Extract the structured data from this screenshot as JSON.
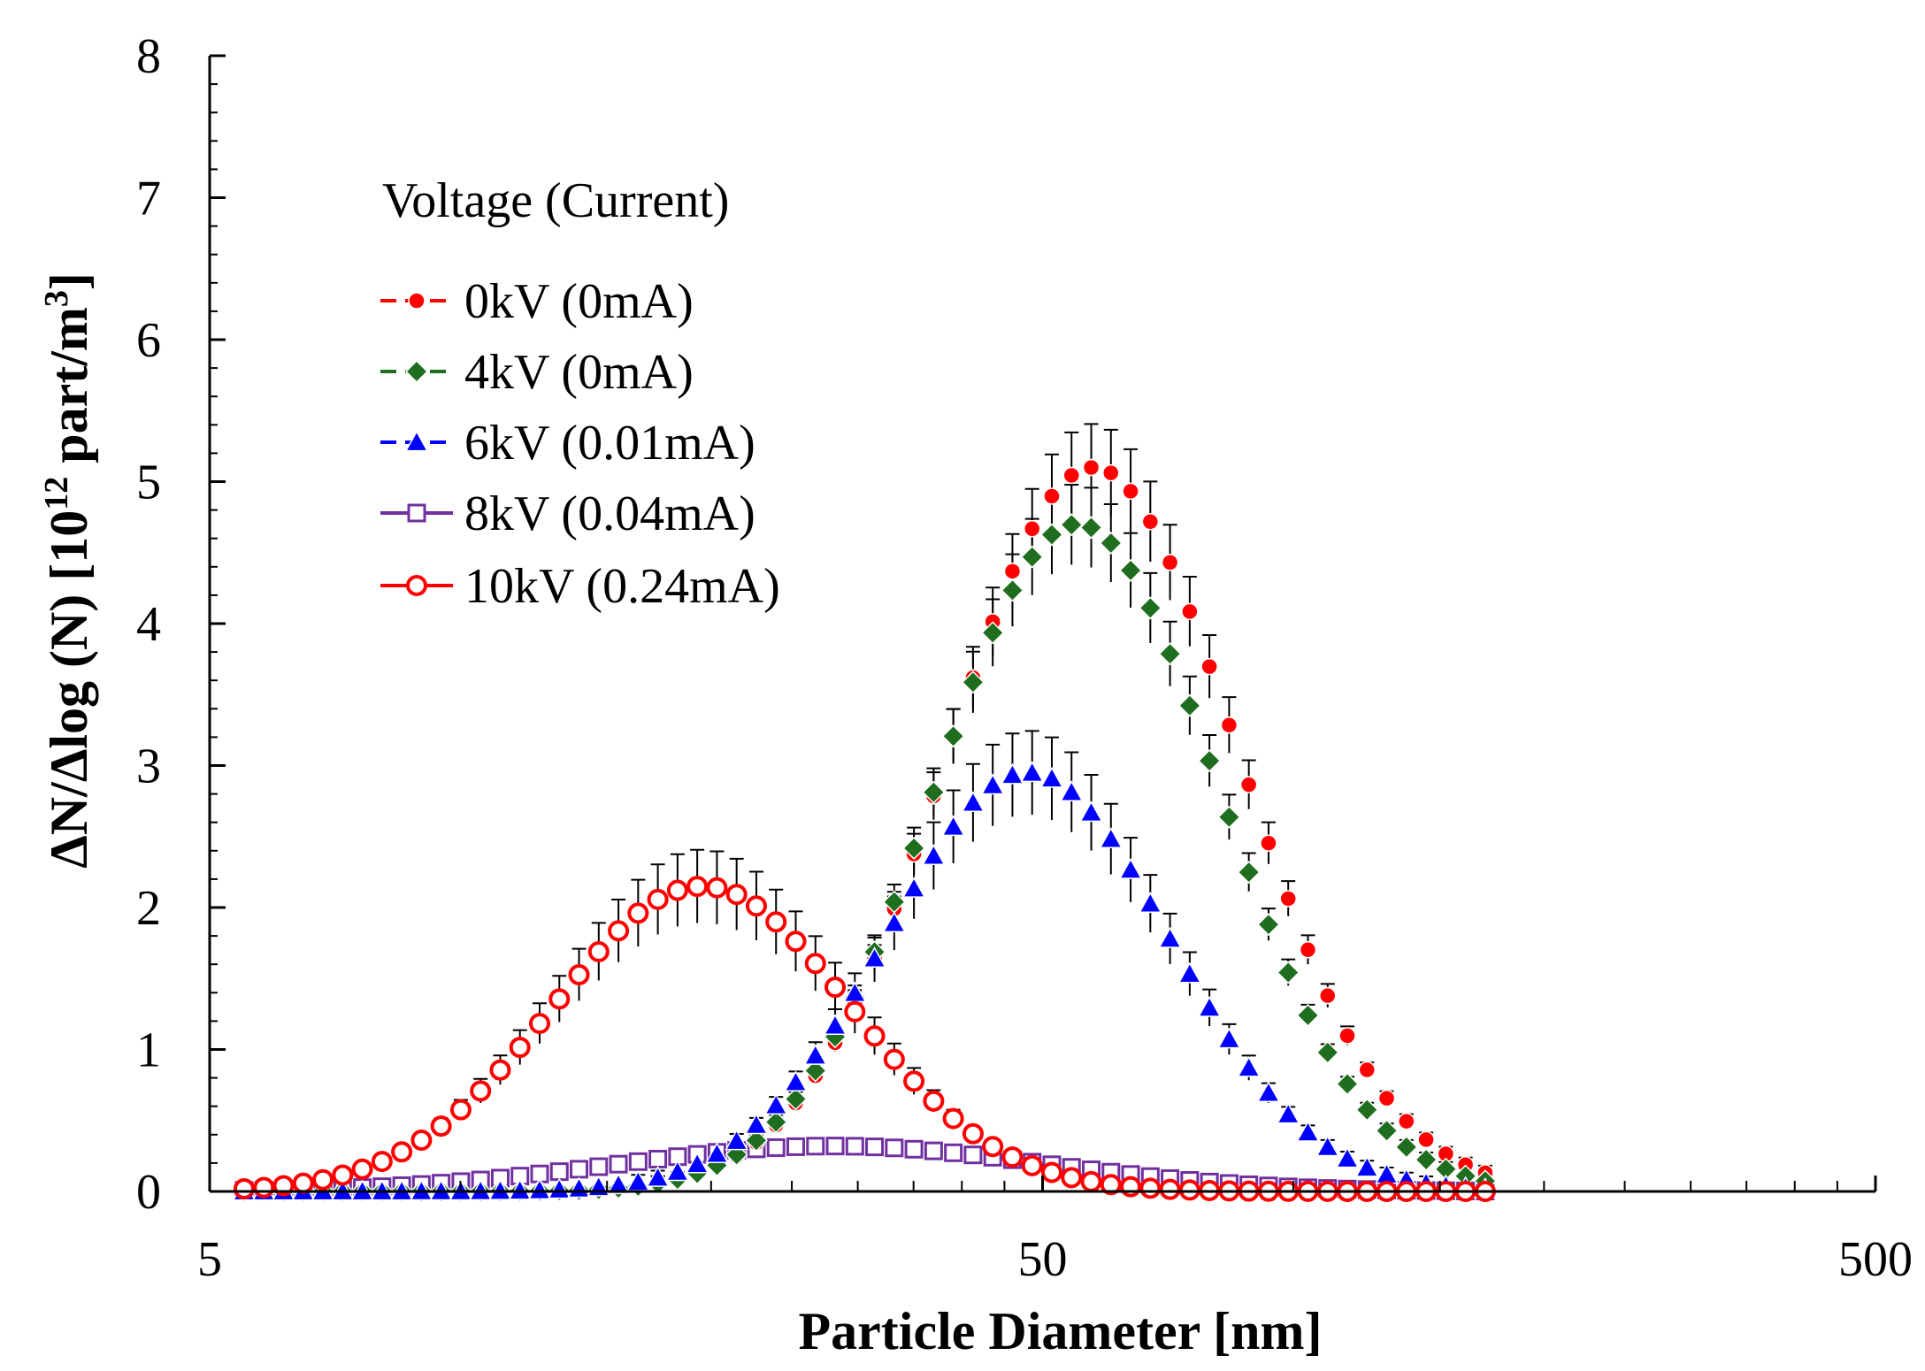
{
  "chart_data": {
    "type": "scatter",
    "title": "",
    "xlabel": "Particle Diameter [nm]",
    "ylabel": {
      "prefix": "ΔN/Δlog (N)  [10",
      "sup1": "12",
      "mid": " part/m",
      "sup2": "3",
      "suffix": "]"
    },
    "x_scale": "log",
    "xlim": [
      5,
      500
    ],
    "ylim": [
      0,
      8
    ],
    "x_ticks": [
      5,
      50,
      500
    ],
    "x_tick_labels": [
      "5",
      "50",
      "500"
    ],
    "y_ticks": [
      0,
      1,
      2,
      3,
      4,
      5,
      6,
      7,
      8
    ],
    "y_tick_labels": [
      "0",
      "1",
      "2",
      "3",
      "4",
      "5",
      "6",
      "7",
      "8"
    ],
    "legend_title": "Voltage (Current)",
    "legend_position": "upper-left",
    "series": [
      {
        "name": "0kV (0mA)",
        "color": "#ff0000",
        "marker": "circle-filled",
        "fwhm": 0.41,
        "peak_x": 57.5,
        "peak_y": 5.1,
        "x_min": 5.5,
        "x_max": 170,
        "err_frac": 0.06
      },
      {
        "name": "4kV (0mA)",
        "color": "#1f6e1f",
        "marker": "diamond-filled",
        "fwhm": 0.4,
        "peak_x": 55.0,
        "peak_y": 4.7,
        "x_min": 5.5,
        "x_max": 170,
        "err_frac": 0.06
      },
      {
        "name": "6kV (0.01mA)",
        "color": "#0000ff",
        "marker": "triangle-filled",
        "fwhm": 0.4,
        "peak_x": 48.0,
        "peak_y": 2.95,
        "x_min": 5.5,
        "x_max": 170,
        "err_frac": 0.1
      },
      {
        "name": "8kV (0.04mA)",
        "color": "#7030a0",
        "marker": "square-open",
        "fwhm": 0.6,
        "peak_x": 28.0,
        "peak_y": 0.32,
        "x_min": 5.5,
        "x_max": 170,
        "err_frac": 0.0
      },
      {
        "name": "10kV (0.24mA)",
        "color": "#ff0000",
        "marker": "circle-open",
        "fwhm": 0.42,
        "peak_x": 19.5,
        "peak_y": 2.15,
        "x_min": 5.5,
        "x_max": 170,
        "err_frac": 0.12
      }
    ]
  }
}
